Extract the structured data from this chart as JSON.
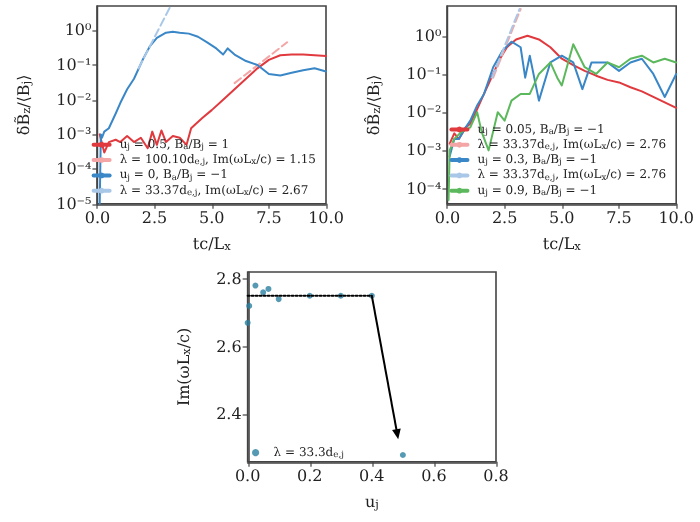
{
  "chart_data": [
    {
      "type": "line",
      "xlabel": "tc/L$_{x}$",
      "ylabel": "δB̃$_{z}$/⟨B$_{j}$⟩",
      "log": "y",
      "grid": false,
      "marker": "none",
      "legend": "bottom right",
      "xlim": [
        0,
        10
      ],
      "xticks": [
        {
          "value": 0,
          "label": "0.0"
        },
        {
          "value": 2.5,
          "label": "2.5"
        },
        {
          "value": 5,
          "label": "5.0"
        },
        {
          "value": 7.5,
          "label": "7.5"
        },
        {
          "value": 10,
          "label": "10.0"
        }
      ],
      "ylim": [
        1e-05,
        5
      ],
      "yticks": [
        {
          "value": 1e-05,
          "label": "10⁻⁵"
        },
        {
          "value": 0.0001,
          "label": "10⁻⁴"
        },
        {
          "value": 0.001,
          "label": "10⁻³"
        },
        {
          "value": 0.01,
          "label": "10⁻²"
        },
        {
          "value": 0.1,
          "label": "10⁻¹"
        },
        {
          "value": 1,
          "label": "10⁰"
        }
      ],
      "series": [
        {
          "name": "u$_{j}$ = 0.5, B$_{a}$/B$_{j}$ = 1",
          "color": "#e0393e",
          "x": [
            0.1,
            0.3,
            0.5,
            0.8,
            1.0,
            1.3,
            1.6,
            1.9,
            2.2,
            2.4,
            2.6,
            2.8,
            3.0,
            3.3,
            3.6,
            3.9,
            4.1,
            4.3,
            4.6,
            5.0,
            5.5,
            6.0,
            6.5,
            7.0,
            7.5,
            8.0,
            8.5,
            9.0,
            9.5,
            10.0
          ],
          "values": [
            0.001,
            0.0003,
            0.0006,
            0.0007,
            0.0006,
            0.0009,
            0.0006,
            0.0008,
            0.0004,
            0.0012,
            0.0005,
            0.0013,
            0.0006,
            0.0009,
            0.0008,
            0.0005,
            0.0015,
            0.002,
            0.003,
            0.005,
            0.01,
            0.02,
            0.04,
            0.08,
            0.14,
            0.19,
            0.2,
            0.2,
            0.19,
            0.18
          ]
        },
        {
          "name": "λ = 100.10d$_{e,j}$, Im(ωL$_{x}$/c) = 1.15",
          "color": "#f4a6a6",
          "line_style": "dashed",
          "x": [
            6.0,
            8.3
          ],
          "values": [
            0.03,
            0.45
          ]
        },
        {
          "name": "u$_{j}$ = 0, B$_{a}$/B$_{j}$ = −1",
          "color": "#3a87c8",
          "x": [
            0.1,
            0.15,
            0.2,
            0.3,
            0.5,
            0.8,
            1.0,
            1.3,
            1.6,
            2.0,
            2.3,
            2.6,
            3.0,
            3.3,
            3.6,
            4.0,
            4.4,
            4.8,
            5.2,
            5.5,
            5.7,
            6.0,
            6.5,
            7.0,
            7.5,
            8.0,
            8.5,
            9.0,
            9.5,
            10.0
          ],
          "values": [
            1e-05,
            0.001,
            0.0008,
            0.0012,
            0.0015,
            0.004,
            0.008,
            0.02,
            0.04,
            0.15,
            0.35,
            0.6,
            0.85,
            0.9,
            0.85,
            0.8,
            0.65,
            0.45,
            0.3,
            0.2,
            0.3,
            0.2,
            0.13,
            0.1,
            0.055,
            0.05,
            0.06,
            0.07,
            0.08,
            0.065
          ]
        },
        {
          "name": "λ = 33.37d$_{e,j}$, Im(ωL$_{x}$/c) = 2.67",
          "color": "#a9c8e8",
          "line_style": "dashed",
          "x": [
            1.8,
            3.2
          ],
          "values": [
            0.08,
            5
          ]
        }
      ]
    },
    {
      "type": "line",
      "xlabel": "tc/L$_{x}$",
      "ylabel": "δB̂$_{z}$/⟨B$_{j}$⟩",
      "log": "y",
      "grid": false,
      "marker": "none",
      "legend": "bottom right",
      "xlim": [
        0,
        10
      ],
      "xticks": [
        {
          "value": 0,
          "label": "0.0"
        },
        {
          "value": 2.5,
          "label": "2.5"
        },
        {
          "value": 5,
          "label": "5.0"
        },
        {
          "value": 7.5,
          "label": "7.5"
        },
        {
          "value": 10,
          "label": "10.0"
        }
      ],
      "ylim": [
        4e-05,
        6
      ],
      "yticks": [
        {
          "value": 0.0001,
          "label": "10⁻⁴"
        },
        {
          "value": 0.001,
          "label": "10⁻³"
        },
        {
          "value": 0.01,
          "label": "10⁻²"
        },
        {
          "value": 0.1,
          "label": "10⁻¹"
        },
        {
          "value": 1,
          "label": "10⁰"
        }
      ],
      "series": [
        {
          "name": "u$_{j}$ = 0.05, B$_{a}$/B$_{j}$ = −1",
          "color": "#e0393e",
          "x": [
            0.1,
            0.3,
            0.5,
            0.8,
            1.0,
            1.3,
            1.6,
            2.0,
            2.3,
            2.6,
            3.0,
            3.5,
            4.0,
            4.5,
            5.0,
            5.5,
            6.0,
            6.5,
            7.0,
            7.5,
            8.0,
            8.5,
            9.0,
            9.5,
            10.0
          ],
          "values": [
            0.0015,
            0.0028,
            0.002,
            0.004,
            0.005,
            0.012,
            0.03,
            0.1,
            0.25,
            0.5,
            0.8,
            1.0,
            0.8,
            0.5,
            0.25,
            0.17,
            0.12,
            0.09,
            0.07,
            0.06,
            0.045,
            0.035,
            0.025,
            0.018,
            0.013
          ]
        },
        {
          "name": "λ = 33.37d$_{e,j}$, Im(ωL$_{x}$/c) = 2.76",
          "color": "#f4a6a6",
          "line_style": "dashed",
          "x": [
            2.0,
            3.2
          ],
          "values": [
            0.08,
            5
          ]
        },
        {
          "name": "u$_{j}$ = 0.3, B$_{a}$/B$_{j}$ = −1",
          "color": "#3a87c8",
          "x": [
            0.1,
            0.3,
            0.5,
            0.8,
            1.0,
            1.3,
            1.6,
            2.0,
            2.4,
            2.8,
            3.2,
            3.4,
            3.6,
            4.0,
            4.5,
            5.0,
            5.5,
            5.9,
            6.3,
            7.0,
            7.5,
            8.0,
            8.5,
            9.0,
            9.5,
            10.0
          ],
          "values": [
            0.0007,
            0.002,
            0.002,
            0.004,
            0.006,
            0.015,
            0.03,
            0.15,
            0.4,
            0.7,
            0.5,
            0.08,
            0.3,
            0.02,
            0.2,
            0.3,
            0.2,
            0.04,
            0.2,
            0.2,
            0.12,
            0.2,
            0.25,
            0.1,
            0.025,
            0.1
          ]
        },
        {
          "name": "λ = 33.37d$_{e,j}$, Im(ωL$_{x}$/c) = 2.76 ",
          "color": "#a9c8e8",
          "line_style": "dashed",
          "x": [
            1.95,
            3.15
          ],
          "values": [
            0.08,
            5
          ]
        },
        {
          "name": "u$_{j}$ = 0.9, B$_{a}$/B$_{j}$ = −1",
          "color": "#5cb85c",
          "x": [
            0.05,
            0.1,
            0.3,
            0.6,
            1.0,
            1.3,
            1.5,
            1.8,
            2.2,
            2.5,
            2.8,
            3.2,
            3.6,
            4.0,
            4.5,
            4.8,
            5.0,
            5.5,
            6.0,
            6.5,
            7.0,
            7.5,
            8.0,
            8.5,
            9.0,
            9.5,
            10.0
          ],
          "values": [
            5e-05,
            0.001,
            0.002,
            0.003,
            0.004,
            0.01,
            0.003,
            0.001,
            0.01,
            0.006,
            0.02,
            0.03,
            0.03,
            0.1,
            0.2,
            0.08,
            0.05,
            0.6,
            0.15,
            0.1,
            0.2,
            0.15,
            0.25,
            0.3,
            0.2,
            0.25,
            0.2
          ]
        }
      ]
    },
    {
      "type": "scatter",
      "xlabel": "u$_{j}$",
      "ylabel": "Im(ωL$_{x}$/c)",
      "grid": false,
      "marker": "circle",
      "legend": "bottom left",
      "xlim": [
        0,
        0.8
      ],
      "xticks": [
        {
          "value": 0,
          "label": "0.0"
        },
        {
          "value": 0.2,
          "label": "0.2"
        },
        {
          "value": 0.4,
          "label": "0.4"
        },
        {
          "value": 0.6,
          "label": "0.6"
        },
        {
          "value": 0.8,
          "label": "0.8"
        }
      ],
      "ylim": [
        2.26,
        2.82
      ],
      "yticks": [
        2.4,
        2.6,
        2.8
      ],
      "series": [
        {
          "name": "λ = 33.3d$_{e,j}$",
          "color": "#2a7fa0",
          "x": [
            0,
            0.005,
            0.025,
            0.05,
            0.067,
            0.1,
            0.2,
            0.3,
            0.4,
            0.5
          ],
          "values": [
            2.67,
            2.72,
            2.78,
            2.76,
            2.77,
            2.74,
            2.75,
            2.75,
            2.75,
            2.28
          ]
        },
        {
          "type": "line",
          "color": "#000000",
          "line_style": "dotted",
          "marker": "none",
          "x": [
            0,
            0.4
          ],
          "values": [
            2.75,
            2.75
          ]
        }
      ]
    }
  ]
}
